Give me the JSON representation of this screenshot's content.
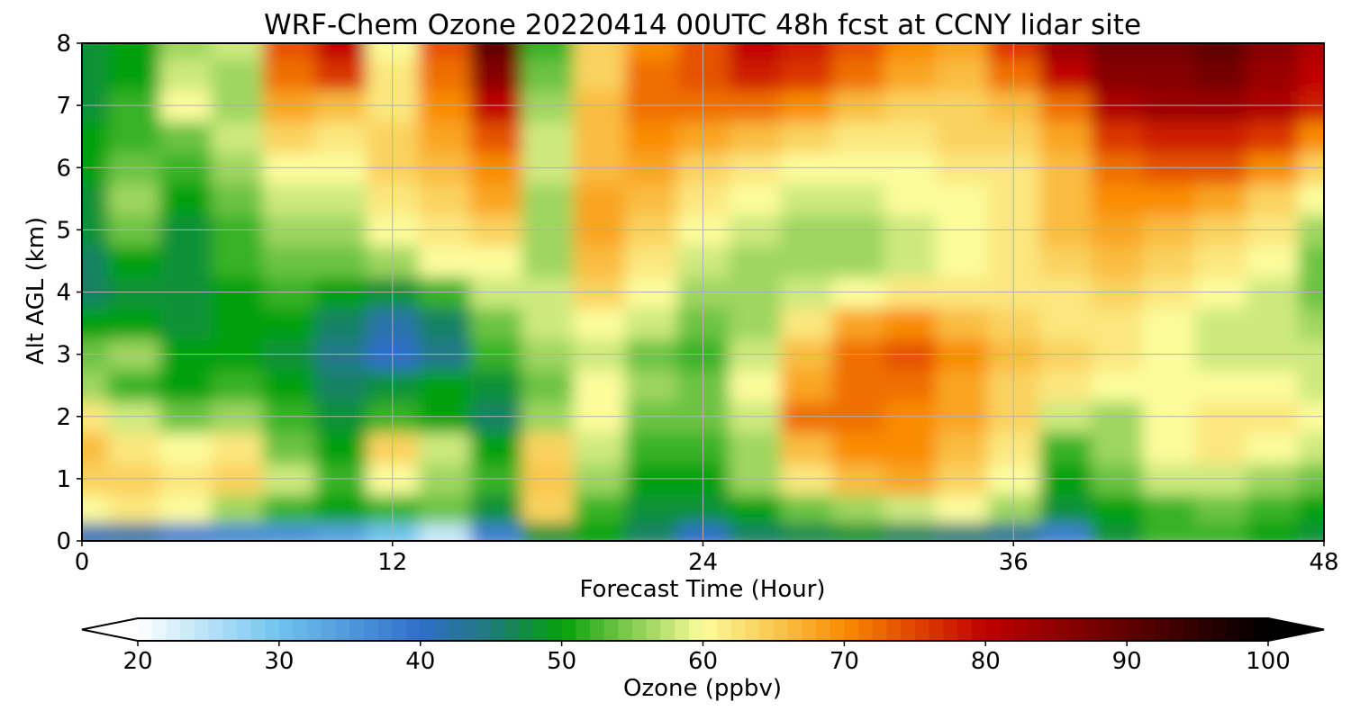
{
  "chart_data": {
    "type": "heatmap",
    "title": "WRF-Chem Ozone  20220414 00UTC 48h fcst at CCNY lidar site",
    "xlabel": "Forecast Time (Hour)",
    "ylabel": "Alt AGL (km)",
    "xlim": [
      0,
      48
    ],
    "ylim": [
      0,
      8
    ],
    "xticks": [
      0,
      12,
      24,
      36,
      48
    ],
    "yticks": [
      0,
      1,
      2,
      3,
      4,
      5,
      6,
      7,
      8
    ],
    "grid": true,
    "x": [
      0,
      2,
      4,
      6,
      8,
      10,
      12,
      14,
      16,
      18,
      20,
      22,
      24,
      26,
      28,
      30,
      32,
      34,
      36,
      38,
      40,
      42,
      44,
      46,
      48
    ],
    "y": [
      0.1,
      0.5,
      1,
      1.5,
      2,
      2.5,
      3,
      3.5,
      4,
      4.5,
      5,
      5.5,
      6,
      6.5,
      7,
      7.5,
      8
    ],
    "z": [
      [
        41,
        42,
        38,
        37,
        36,
        34,
        30,
        24,
        38,
        48,
        50,
        46,
        40,
        46,
        47,
        48,
        46,
        45,
        43,
        38,
        48,
        52,
        52,
        50,
        48
      ],
      [
        60,
        62,
        60,
        56,
        52,
        50,
        52,
        54,
        48,
        64,
        52,
        48,
        48,
        50,
        54,
        56,
        58,
        60,
        56,
        48,
        50,
        52,
        54,
        52,
        50
      ],
      [
        64,
        64,
        62,
        64,
        58,
        52,
        60,
        56,
        52,
        65,
        56,
        50,
        50,
        56,
        62,
        66,
        68,
        64,
        60,
        50,
        54,
        58,
        58,
        56,
        54
      ],
      [
        66,
        62,
        60,
        62,
        54,
        50,
        64,
        58,
        50,
        64,
        58,
        52,
        52,
        56,
        66,
        70,
        70,
        66,
        62,
        52,
        56,
        60,
        62,
        60,
        58
      ],
      [
        62,
        58,
        54,
        56,
        52,
        48,
        52,
        50,
        46,
        56,
        60,
        54,
        54,
        58,
        72,
        72,
        70,
        68,
        64,
        58,
        56,
        60,
        62,
        62,
        60
      ],
      [
        56,
        52,
        50,
        52,
        50,
        46,
        48,
        50,
        48,
        54,
        60,
        56,
        54,
        60,
        68,
        72,
        72,
        68,
        64,
        62,
        60,
        60,
        60,
        60,
        58
      ],
      [
        54,
        56,
        50,
        50,
        48,
        44,
        40,
        44,
        52,
        56,
        58,
        54,
        52,
        58,
        66,
        72,
        74,
        70,
        66,
        64,
        62,
        60,
        58,
        58,
        58
      ],
      [
        50,
        50,
        48,
        50,
        50,
        46,
        42,
        46,
        54,
        58,
        60,
        58,
        54,
        56,
        62,
        68,
        70,
        66,
        64,
        62,
        62,
        60,
        58,
        58,
        56
      ],
      [
        46,
        48,
        48,
        50,
        52,
        50,
        48,
        52,
        58,
        58,
        64,
        60,
        56,
        56,
        58,
        60,
        62,
        62,
        62,
        62,
        64,
        62,
        60,
        58,
        54
      ],
      [
        46,
        50,
        48,
        52,
        54,
        54,
        56,
        60,
        60,
        56,
        66,
        62,
        58,
        56,
        56,
        56,
        58,
        60,
        62,
        64,
        66,
        64,
        62,
        60,
        54
      ],
      [
        48,
        54,
        48,
        52,
        56,
        56,
        60,
        62,
        64,
        56,
        68,
        64,
        60,
        58,
        56,
        56,
        58,
        60,
        62,
        66,
        68,
        66,
        64,
        62,
        56
      ],
      [
        48,
        56,
        50,
        54,
        58,
        58,
        62,
        64,
        68,
        56,
        68,
        66,
        62,
        60,
        58,
        58,
        60,
        60,
        62,
        66,
        70,
        70,
        68,
        64,
        60
      ],
      [
        50,
        54,
        52,
        56,
        60,
        60,
        64,
        66,
        70,
        58,
        66,
        68,
        64,
        62,
        60,
        60,
        60,
        62,
        62,
        66,
        72,
        74,
        74,
        70,
        64
      ],
      [
        50,
        52,
        54,
        58,
        64,
        62,
        64,
        68,
        74,
        58,
        66,
        70,
        68,
        66,
        64,
        62,
        62,
        64,
        64,
        68,
        76,
        78,
        78,
        76,
        70
      ],
      [
        48,
        52,
        60,
        56,
        68,
        66,
        62,
        70,
        80,
        56,
        66,
        72,
        72,
        72,
        70,
        66,
        64,
        64,
        66,
        72,
        82,
        84,
        84,
        82,
        78
      ],
      [
        48,
        50,
        58,
        56,
        72,
        76,
        62,
        72,
        86,
        54,
        64,
        72,
        74,
        78,
        76,
        72,
        68,
        66,
        72,
        80,
        86,
        86,
        88,
        84,
        80
      ],
      [
        48,
        50,
        56,
        58,
        74,
        80,
        60,
        74,
        90,
        52,
        64,
        70,
        74,
        80,
        78,
        74,
        70,
        68,
        76,
        84,
        88,
        88,
        90,
        86,
        82
      ]
    ],
    "colorbar": {
      "label": "Ozone  (ppbv)",
      "ticks": [
        20,
        30,
        40,
        50,
        60,
        70,
        80,
        90,
        100
      ],
      "min": 20,
      "max": 100,
      "extend": "both",
      "colormap_stops": [
        {
          "value": 20,
          "color": "#ffffff"
        },
        {
          "value": 30,
          "color": "#6fc3ef"
        },
        {
          "value": 40,
          "color": "#2f6ec8"
        },
        {
          "value": 45,
          "color": "#1f7a7a"
        },
        {
          "value": 50,
          "color": "#03a00a"
        },
        {
          "value": 55,
          "color": "#86cc50"
        },
        {
          "value": 60,
          "color": "#fcfc9c"
        },
        {
          "value": 65,
          "color": "#f9c850"
        },
        {
          "value": 70,
          "color": "#f98c00"
        },
        {
          "value": 75,
          "color": "#e04400"
        },
        {
          "value": 80,
          "color": "#c00000"
        },
        {
          "value": 90,
          "color": "#600000"
        },
        {
          "value": 100,
          "color": "#000000"
        }
      ]
    }
  }
}
